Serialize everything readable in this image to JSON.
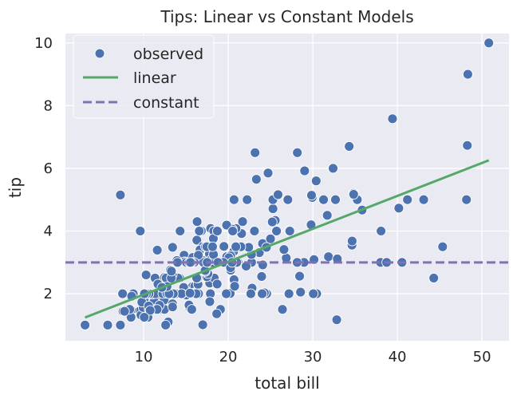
{
  "chart_data": {
    "type": "scatter",
    "title": "Tips: Linear vs Constant Models",
    "xlabel": "total bill",
    "ylabel": "tip",
    "xlim": [
      0.75,
      53.2
    ],
    "ylim": [
      0.5,
      10.3
    ],
    "xticks": [
      10,
      20,
      30,
      40,
      50
    ],
    "yticks": [
      2,
      4,
      6,
      8,
      10
    ],
    "grid": true,
    "legend_position": "top-left",
    "legend": [
      "observed",
      "linear",
      "constant"
    ],
    "colors": {
      "observed": "#4C72B0",
      "linear": "#55A868",
      "constant": "#8172B3",
      "background": "#EAEAF2"
    },
    "linear": {
      "intercept": 0.92,
      "slope": 0.105,
      "x_range": [
        3.07,
        50.81
      ]
    },
    "constant": {
      "value": 2.998
    },
    "points": [
      [
        16.99,
        1.01
      ],
      [
        10.34,
        1.66
      ],
      [
        21.01,
        3.5
      ],
      [
        23.68,
        3.31
      ],
      [
        24.59,
        3.61
      ],
      [
        25.29,
        4.71
      ],
      [
        8.77,
        2.0
      ],
      [
        26.88,
        3.12
      ],
      [
        15.04,
        1.96
      ],
      [
        14.78,
        3.23
      ],
      [
        10.27,
        1.71
      ],
      [
        35.26,
        5.0
      ],
      [
        15.42,
        1.57
      ],
      [
        18.43,
        3.0
      ],
      [
        14.83,
        3.02
      ],
      [
        21.58,
        3.92
      ],
      [
        10.33,
        1.67
      ],
      [
        16.29,
        3.71
      ],
      [
        16.97,
        3.5
      ],
      [
        20.65,
        3.35
      ],
      [
        17.92,
        4.08
      ],
      [
        20.29,
        2.75
      ],
      [
        15.77,
        2.23
      ],
      [
        39.42,
        7.58
      ],
      [
        19.82,
        3.18
      ],
      [
        17.81,
        2.34
      ],
      [
        13.37,
        2.0
      ],
      [
        12.69,
        2.0
      ],
      [
        21.7,
        4.3
      ],
      [
        19.65,
        3.0
      ],
      [
        9.55,
        1.45
      ],
      [
        18.35,
        2.5
      ],
      [
        15.06,
        3.0
      ],
      [
        20.69,
        2.45
      ],
      [
        17.78,
        3.27
      ],
      [
        24.06,
        3.6
      ],
      [
        16.31,
        2.0
      ],
      [
        16.93,
        3.07
      ],
      [
        18.69,
        2.31
      ],
      [
        31.27,
        5.0
      ],
      [
        16.04,
        2.24
      ],
      [
        17.46,
        2.54
      ],
      [
        13.94,
        3.06
      ],
      [
        9.68,
        1.32
      ],
      [
        30.4,
        5.6
      ],
      [
        18.29,
        3.0
      ],
      [
        22.23,
        5.0
      ],
      [
        32.4,
        6.0
      ],
      [
        28.55,
        2.05
      ],
      [
        18.04,
        3.0
      ],
      [
        12.54,
        2.5
      ],
      [
        10.29,
        2.6
      ],
      [
        34.81,
        5.2
      ],
      [
        9.94,
        1.56
      ],
      [
        25.56,
        4.34
      ],
      [
        19.49,
        3.51
      ],
      [
        38.01,
        3.0
      ],
      [
        26.41,
        1.5
      ],
      [
        11.24,
        1.76
      ],
      [
        48.27,
        6.73
      ],
      [
        20.29,
        3.21
      ],
      [
        13.81,
        2.0
      ],
      [
        11.02,
        1.98
      ],
      [
        18.29,
        3.76
      ],
      [
        17.59,
        2.64
      ],
      [
        20.08,
        3.15
      ],
      [
        16.45,
        2.47
      ],
      [
        3.07,
        1.0
      ],
      [
        20.23,
        2.01
      ],
      [
        15.01,
        2.09
      ],
      [
        12.02,
        1.97
      ],
      [
        17.07,
        3.0
      ],
      [
        26.86,
        3.14
      ],
      [
        25.28,
        5.0
      ],
      [
        14.73,
        2.2
      ],
      [
        10.51,
        1.25
      ],
      [
        17.92,
        3.08
      ],
      [
        27.2,
        4.0
      ],
      [
        22.76,
        3.0
      ],
      [
        17.29,
        2.71
      ],
      [
        19.44,
        3.0
      ],
      [
        16.66,
        3.4
      ],
      [
        10.07,
        1.83
      ],
      [
        32.68,
        5.0
      ],
      [
        15.98,
        2.03
      ],
      [
        34.83,
        5.17
      ],
      [
        13.03,
        2.0
      ],
      [
        18.28,
        4.0
      ],
      [
        24.71,
        5.85
      ],
      [
        21.16,
        3.0
      ],
      [
        28.97,
        3.0
      ],
      [
        22.49,
        3.5
      ],
      [
        5.75,
        1.0
      ],
      [
        16.32,
        4.3
      ],
      [
        22.75,
        3.25
      ],
      [
        40.17,
        4.73
      ],
      [
        27.28,
        4.0
      ],
      [
        12.03,
        1.5
      ],
      [
        21.01,
        3.0
      ],
      [
        12.46,
        1.5
      ],
      [
        11.35,
        2.5
      ],
      [
        15.38,
        3.0
      ],
      [
        44.3,
        2.5
      ],
      [
        22.42,
        3.48
      ],
      [
        20.92,
        4.08
      ],
      [
        15.36,
        1.64
      ],
      [
        20.49,
        4.06
      ],
      [
        25.21,
        4.29
      ],
      [
        18.24,
        3.76
      ],
      [
        14.31,
        4.0
      ],
      [
        14.0,
        3.0
      ],
      [
        7.25,
        1.0
      ],
      [
        38.07,
        4.0
      ],
      [
        23.95,
        2.55
      ],
      [
        25.71,
        4.0
      ],
      [
        17.31,
        3.5
      ],
      [
        29.93,
        5.07
      ],
      [
        10.65,
        1.5
      ],
      [
        12.43,
        1.8
      ],
      [
        24.08,
        2.92
      ],
      [
        11.69,
        2.31
      ],
      [
        13.42,
        1.68
      ],
      [
        14.26,
        2.5
      ],
      [
        15.95,
        2.0
      ],
      [
        12.48,
        2.52
      ],
      [
        29.8,
        4.2
      ],
      [
        8.52,
        1.48
      ],
      [
        14.52,
        2.0
      ],
      [
        11.38,
        2.0
      ],
      [
        22.82,
        2.18
      ],
      [
        19.08,
        1.5
      ],
      [
        20.27,
        2.83
      ],
      [
        11.17,
        1.5
      ],
      [
        12.26,
        2.0
      ],
      [
        18.26,
        3.25
      ],
      [
        8.51,
        1.25
      ],
      [
        10.33,
        2.0
      ],
      [
        14.15,
        2.0
      ],
      [
        16.0,
        2.0
      ],
      [
        13.16,
        2.75
      ],
      [
        17.47,
        3.5
      ],
      [
        34.3,
        6.7
      ],
      [
        41.19,
        5.0
      ],
      [
        27.05,
        5.0
      ],
      [
        16.43,
        2.3
      ],
      [
        8.35,
        1.5
      ],
      [
        18.64,
        1.36
      ],
      [
        11.87,
        1.63
      ],
      [
        9.78,
        1.73
      ],
      [
        7.51,
        2.0
      ],
      [
        14.07,
        2.5
      ],
      [
        13.13,
        2.0
      ],
      [
        17.26,
        2.74
      ],
      [
        24.55,
        2.0
      ],
      [
        19.77,
        2.0
      ],
      [
        29.85,
        5.14
      ],
      [
        48.17,
        5.0
      ],
      [
        25.0,
        3.75
      ],
      [
        13.39,
        2.61
      ],
      [
        16.49,
        2.0
      ],
      [
        21.5,
        3.5
      ],
      [
        12.66,
        2.5
      ],
      [
        16.21,
        2.0
      ],
      [
        13.81,
        2.0
      ],
      [
        17.51,
        3.0
      ],
      [
        24.52,
        3.48
      ],
      [
        20.76,
        2.24
      ],
      [
        31.71,
        4.5
      ],
      [
        10.59,
        1.61
      ],
      [
        10.63,
        2.0
      ],
      [
        50.81,
        10.0
      ],
      [
        15.81,
        3.16
      ],
      [
        7.25,
        5.15
      ],
      [
        31.85,
        3.18
      ],
      [
        16.82,
        4.0
      ],
      [
        32.9,
        3.11
      ],
      [
        17.89,
        2.0
      ],
      [
        14.48,
        2.0
      ],
      [
        9.6,
        4.0
      ],
      [
        34.63,
        3.55
      ],
      [
        34.65,
        3.68
      ],
      [
        23.33,
        5.65
      ],
      [
        45.35,
        3.5
      ],
      [
        23.17,
        6.5
      ],
      [
        40.55,
        3.0
      ],
      [
        20.69,
        5.0
      ],
      [
        20.9,
        3.5
      ],
      [
        30.46,
        2.0
      ],
      [
        18.15,
        3.5
      ],
      [
        23.1,
        4.0
      ],
      [
        15.69,
        1.5
      ],
      [
        19.81,
        4.19
      ],
      [
        28.44,
        2.56
      ],
      [
        15.48,
        2.02
      ],
      [
        16.58,
        4.0
      ],
      [
        7.56,
        1.44
      ],
      [
        10.34,
        2.0
      ],
      [
        43.11,
        5.0
      ],
      [
        13.0,
        2.0
      ],
      [
        13.51,
        2.0
      ],
      [
        18.71,
        4.0
      ],
      [
        12.74,
        2.01
      ],
      [
        13.0,
        2.0
      ],
      [
        16.4,
        2.5
      ],
      [
        20.53,
        4.0
      ],
      [
        16.47,
        3.23
      ],
      [
        26.59,
        3.41
      ],
      [
        38.73,
        3.0
      ],
      [
        24.27,
        2.03
      ],
      [
        12.76,
        2.23
      ],
      [
        30.06,
        2.0
      ],
      [
        25.89,
        5.16
      ],
      [
        48.33,
        9.0
      ],
      [
        13.27,
        2.5
      ],
      [
        28.17,
        6.5
      ],
      [
        12.9,
        1.1
      ],
      [
        28.15,
        3.0
      ],
      [
        11.59,
        1.5
      ],
      [
        7.74,
        1.44
      ],
      [
        30.14,
        3.09
      ],
      [
        12.16,
        2.2
      ],
      [
        13.42,
        3.48
      ],
      [
        8.58,
        1.92
      ],
      [
        15.98,
        3.0
      ],
      [
        13.42,
        1.58
      ],
      [
        16.27,
        2.5
      ],
      [
        10.09,
        2.0
      ],
      [
        20.45,
        3.0
      ],
      [
        13.28,
        2.72
      ],
      [
        22.12,
        2.88
      ],
      [
        24.01,
        2.0
      ],
      [
        15.69,
        3.0
      ],
      [
        11.61,
        3.39
      ],
      [
        10.77,
        1.47
      ],
      [
        15.53,
        3.0
      ],
      [
        10.07,
        1.25
      ],
      [
        12.6,
        1.0
      ],
      [
        32.83,
        1.17
      ],
      [
        35.83,
        4.67
      ],
      [
        29.03,
        5.92
      ],
      [
        27.18,
        2.0
      ],
      [
        22.67,
        2.0
      ],
      [
        17.82,
        1.75
      ],
      [
        18.78,
        3.0
      ]
    ]
  }
}
